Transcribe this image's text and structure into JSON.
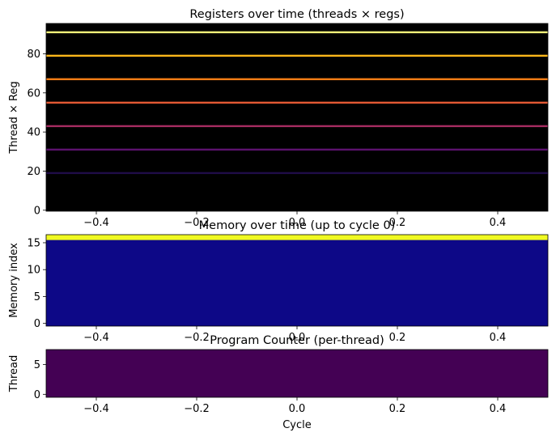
{
  "chart_data": [
    {
      "type": "heatmap",
      "title": "Registers over time (threads × regs)",
      "xlabel": "",
      "ylabel": "Thread × Reg",
      "xlim": [
        -0.5,
        0.5
      ],
      "ylim": [
        -0.5,
        95.5
      ],
      "xticks": [
        -0.4,
        -0.2,
        0.0,
        0.2,
        0.4
      ],
      "xtick_labels": [
        "−0.4",
        "−0.2",
        "0.0",
        "0.2",
        "0.4"
      ],
      "yticks": [
        0,
        20,
        40,
        60,
        80
      ],
      "ytick_labels": [
        "0",
        "20",
        "40",
        "60",
        "80"
      ],
      "colormap": "inferno",
      "background": "#000000",
      "rows": [
        {
          "index": 19,
          "color": "#1f0c48"
        },
        {
          "index": 31,
          "color": "#5c126e"
        },
        {
          "index": 43,
          "color": "#a52c60"
        },
        {
          "index": 55,
          "color": "#e35933"
        },
        {
          "index": 67,
          "color": "#f57d15"
        },
        {
          "index": 79,
          "color": "#fbb61a"
        },
        {
          "index": 91,
          "color": "#f1f179"
        }
      ]
    },
    {
      "type": "heatmap",
      "title": "Memory over time (up to cycle 0)",
      "xlabel": "",
      "ylabel": "Memory index",
      "xlim": [
        -0.5,
        0.5
      ],
      "ylim": [
        -0.5,
        16.5
      ],
      "xticks": [
        -0.4,
        -0.2,
        0.0,
        0.2,
        0.4
      ],
      "xtick_labels": [
        "−0.4",
        "−0.2",
        "0.0",
        "0.2",
        "0.4"
      ],
      "yticks": [
        0,
        5,
        10,
        15
      ],
      "ytick_labels": [
        "0",
        "5",
        "10",
        "15"
      ],
      "colormap": "plasma",
      "background": "#0d0887",
      "rows": [
        {
          "index": 16,
          "color": "#f0f921"
        }
      ]
    },
    {
      "type": "heatmap",
      "title": "Program Counter (per-thread)",
      "xlabel": "Cycle",
      "ylabel": "Thread",
      "xlim": [
        -0.5,
        0.5
      ],
      "ylim": [
        -0.5,
        7.5
      ],
      "xticks": [
        -0.4,
        -0.2,
        0.0,
        0.2,
        0.4
      ],
      "xtick_labels": [
        "−0.4",
        "−0.2",
        "0.0",
        "0.2",
        "0.4"
      ],
      "yticks": [
        0,
        5
      ],
      "ytick_labels": [
        "0",
        "5"
      ],
      "colormap": "viridis",
      "background": "#440154",
      "rows": []
    }
  ]
}
